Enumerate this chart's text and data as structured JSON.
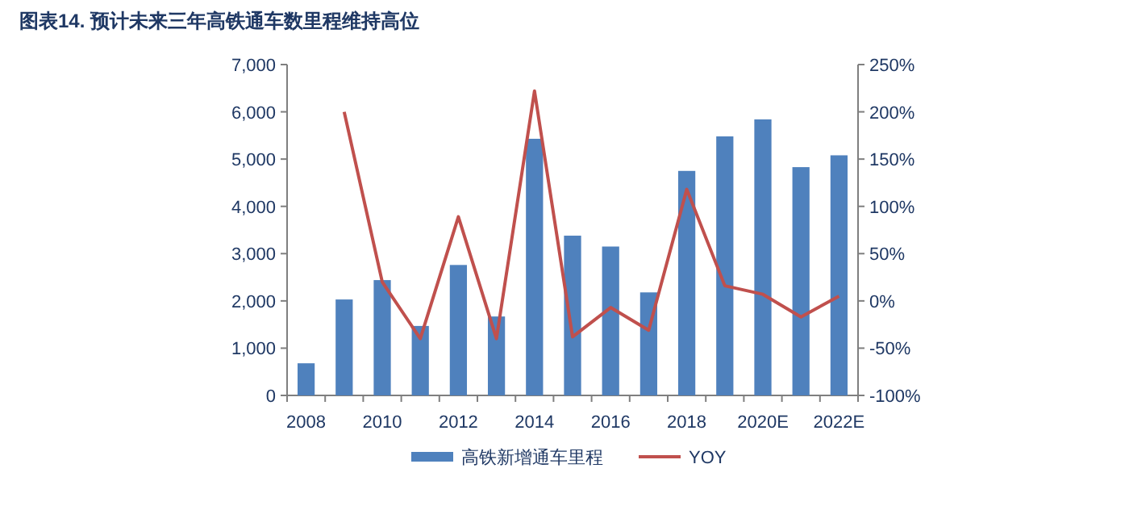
{
  "chart_data": {
    "type": "bar",
    "title": "图表14. 预计未来三年高铁通车数里程维持高位",
    "categories": [
      "2008",
      null,
      "2010",
      null,
      "2012",
      null,
      "2014",
      null,
      "2016",
      null,
      "2018",
      null,
      "2020E",
      null,
      "2022E"
    ],
    "series": [
      {
        "name": "高铁新增通车里程",
        "color": "#4f81bd",
        "values": [
          680,
          2030,
          2440,
          1470,
          2760,
          1670,
          5430,
          3380,
          3150,
          2180,
          4750,
          5480,
          5840,
          4830,
          5080
        ]
      },
      {
        "name": "YOY",
        "type": "line",
        "axis": "y2",
        "color": "#c0504d",
        "values": [
          null,
          200,
          20,
          -40,
          89,
          -40,
          222,
          -38,
          -7,
          -31,
          118,
          16,
          7,
          -17,
          5
        ]
      }
    ],
    "ylim": [
      0,
      7000
    ],
    "yticks": [
      0,
      {
        "value": 1000,
        "label": "1,000"
      },
      {
        "value": 2000,
        "label": "2,000"
      },
      {
        "value": 3000,
        "label": "3,000"
      },
      {
        "value": 4000,
        "label": "4,000"
      },
      {
        "value": 5000,
        "label": "5,000"
      },
      {
        "value": 6000,
        "label": "6,000"
      },
      {
        "value": 7000,
        "label": "7,000"
      }
    ],
    "y2lim": [
      -100,
      250
    ],
    "y2ticks": [
      {
        "value": -100,
        "label": "-100%"
      },
      {
        "value": -50,
        "label": "-50%"
      },
      {
        "value": 0,
        "label": "0%"
      },
      {
        "value": 50,
        "label": "50%"
      },
      {
        "value": 100,
        "label": "100%"
      },
      {
        "value": 150,
        "label": "150%"
      },
      {
        "value": 200,
        "label": "200%"
      },
      {
        "value": 250,
        "label": "250%"
      }
    ],
    "grid": false,
    "legend": "bottom"
  }
}
